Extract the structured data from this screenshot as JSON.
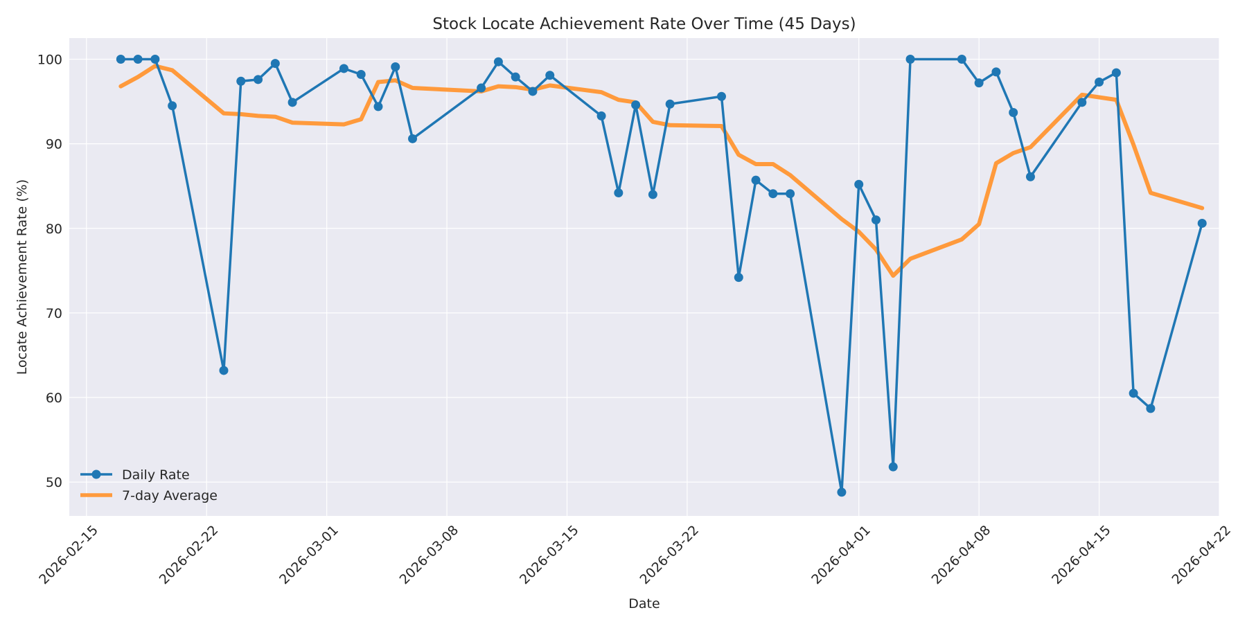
{
  "chart_data": {
    "type": "line",
    "title": "Stock Locate Achievement Rate Over Time (45 Days)",
    "xlabel": "Date",
    "ylabel": "Locate Achievement Rate (%)",
    "xlim": [
      "2026-02-14",
      "2026-04-22"
    ],
    "ylim": [
      46,
      102.5
    ],
    "x_ticks": [
      "2026-02-15",
      "2026-02-22",
      "2026-03-01",
      "2026-03-08",
      "2026-03-15",
      "2026-03-22",
      "2026-04-01",
      "2026-04-08",
      "2026-04-15",
      "2026-04-22"
    ],
    "y_ticks": [
      50,
      60,
      70,
      80,
      90,
      100
    ],
    "grid": true,
    "legend_position": "lower-left",
    "series": [
      {
        "name": "Daily Rate",
        "color": "#1f77b4",
        "marker": "circle",
        "points": [
          [
            "2026-02-17",
            100.0
          ],
          [
            "2026-02-18",
            100.0
          ],
          [
            "2026-02-19",
            100.0
          ],
          [
            "2026-02-20",
            94.5
          ],
          [
            "2026-02-23",
            63.2
          ],
          [
            "2026-02-24",
            97.4
          ],
          [
            "2026-02-25",
            97.6
          ],
          [
            "2026-02-26",
            99.5
          ],
          [
            "2026-02-27",
            94.9
          ],
          [
            "2026-03-02",
            98.9
          ],
          [
            "2026-03-03",
            98.2
          ],
          [
            "2026-03-04",
            94.4
          ],
          [
            "2026-03-05",
            99.1
          ],
          [
            "2026-03-06",
            90.6
          ],
          [
            "2026-03-10",
            96.6
          ],
          [
            "2026-03-11",
            99.7
          ],
          [
            "2026-03-12",
            97.9
          ],
          [
            "2026-03-13",
            96.2
          ],
          [
            "2026-03-14",
            98.1
          ],
          [
            "2026-03-17",
            93.3
          ],
          [
            "2026-03-18",
            84.2
          ],
          [
            "2026-03-19",
            94.6
          ],
          [
            "2026-03-20",
            84.0
          ],
          [
            "2026-03-21",
            94.7
          ],
          [
            "2026-03-24",
            95.6
          ],
          [
            "2026-03-25",
            74.2
          ],
          [
            "2026-03-26",
            85.7
          ],
          [
            "2026-03-27",
            84.1
          ],
          [
            "2026-03-28",
            84.1
          ],
          [
            "2026-03-31",
            48.8
          ],
          [
            "2026-04-01",
            85.2
          ],
          [
            "2026-04-02",
            81.0
          ],
          [
            "2026-04-03",
            51.8
          ],
          [
            "2026-04-04",
            100.0
          ],
          [
            "2026-04-07",
            100.0
          ],
          [
            "2026-04-08",
            97.2
          ],
          [
            "2026-04-09",
            98.5
          ],
          [
            "2026-04-10",
            93.7
          ],
          [
            "2026-04-11",
            86.1
          ],
          [
            "2026-04-14",
            94.9
          ],
          [
            "2026-04-15",
            97.3
          ],
          [
            "2026-04-16",
            98.4
          ],
          [
            "2026-04-17",
            60.5
          ],
          [
            "2026-04-18",
            58.7
          ],
          [
            "2026-04-21",
            80.6
          ]
        ]
      },
      {
        "name": "7-day Average",
        "color": "#ff9a3c",
        "marker": "none",
        "points": [
          [
            "2026-02-17",
            96.8
          ],
          [
            "2026-02-18",
            97.9
          ],
          [
            "2026-02-19",
            99.2
          ],
          [
            "2026-02-20",
            98.7
          ],
          [
            "2026-02-23",
            93.6
          ],
          [
            "2026-02-24",
            93.5
          ],
          [
            "2026-02-25",
            93.3
          ],
          [
            "2026-02-26",
            93.2
          ],
          [
            "2026-02-27",
            92.5
          ],
          [
            "2026-03-02",
            92.3
          ],
          [
            "2026-03-03",
            92.9
          ],
          [
            "2026-03-04",
            97.3
          ],
          [
            "2026-03-05",
            97.5
          ],
          [
            "2026-03-06",
            96.6
          ],
          [
            "2026-03-10",
            96.2
          ],
          [
            "2026-03-11",
            96.8
          ],
          [
            "2026-03-12",
            96.7
          ],
          [
            "2026-03-13",
            96.4
          ],
          [
            "2026-03-14",
            96.9
          ],
          [
            "2026-03-17",
            96.1
          ],
          [
            "2026-03-18",
            95.2
          ],
          [
            "2026-03-19",
            94.9
          ],
          [
            "2026-03-20",
            92.6
          ],
          [
            "2026-03-21",
            92.2
          ],
          [
            "2026-03-24",
            92.1
          ],
          [
            "2026-03-25",
            88.7
          ],
          [
            "2026-03-26",
            87.6
          ],
          [
            "2026-03-27",
            87.6
          ],
          [
            "2026-03-28",
            86.3
          ],
          [
            "2026-03-31",
            81.1
          ],
          [
            "2026-04-01",
            79.6
          ],
          [
            "2026-04-02",
            77.5
          ],
          [
            "2026-04-03",
            74.4
          ],
          [
            "2026-04-04",
            76.4
          ],
          [
            "2026-04-07",
            78.7
          ],
          [
            "2026-04-08",
            80.5
          ],
          [
            "2026-04-09",
            87.7
          ],
          [
            "2026-04-10",
            88.9
          ],
          [
            "2026-04-11",
            89.6
          ],
          [
            "2026-04-14",
            95.8
          ],
          [
            "2026-04-15",
            95.5
          ],
          [
            "2026-04-16",
            95.2
          ],
          [
            "2026-04-17",
            89.9
          ],
          [
            "2026-04-18",
            84.2
          ],
          [
            "2026-04-21",
            82.4
          ]
        ]
      }
    ]
  }
}
